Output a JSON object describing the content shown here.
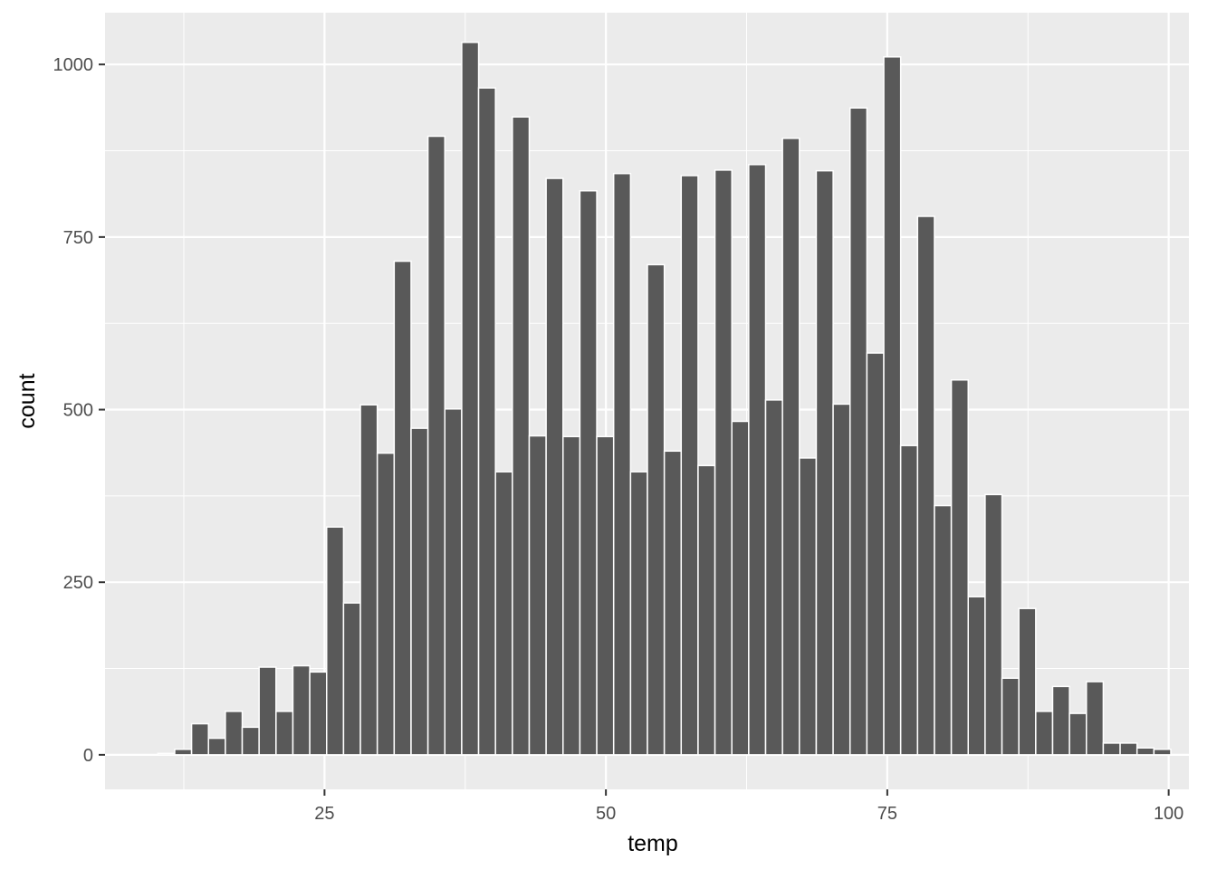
{
  "chart_data": {
    "type": "bar",
    "xlabel": "temp",
    "ylabel": "count",
    "xlim": [
      5.5,
      101.8
    ],
    "ylim": [
      -50,
      1075
    ],
    "x_ticks": [
      25,
      50,
      75,
      100
    ],
    "x_tick_labels": [
      "25",
      "50",
      "75",
      "100"
    ],
    "y_ticks": [
      0,
      250,
      500,
      750,
      1000
    ],
    "y_tick_labels": [
      "0",
      "250",
      "500",
      "750",
      "1000"
    ],
    "bin_width": 1.5,
    "bin_centers": [
      10.94,
      12.44,
      13.94,
      15.44,
      16.94,
      18.44,
      19.94,
      21.44,
      22.94,
      24.44,
      25.94,
      27.44,
      28.94,
      30.44,
      31.94,
      33.44,
      34.94,
      36.44,
      37.94,
      39.44,
      40.94,
      42.44,
      43.94,
      45.44,
      46.94,
      48.44,
      49.94,
      51.44,
      52.94,
      54.44,
      55.94,
      57.44,
      58.94,
      60.44,
      61.94,
      63.44,
      64.94,
      66.44,
      67.94,
      69.44,
      70.94,
      72.44,
      73.94,
      75.44,
      76.94,
      78.44,
      79.94,
      81.44,
      82.94,
      84.44,
      85.94,
      87.44,
      88.94,
      90.44,
      91.94,
      93.44,
      94.94,
      96.44,
      97.94,
      99.44
    ],
    "counts": [
      2,
      8,
      45,
      24,
      63,
      40,
      127,
      63,
      129,
      120,
      330,
      220,
      507,
      437,
      715,
      473,
      896,
      501,
      1032,
      966,
      410,
      924,
      462,
      835,
      461,
      817,
      461,
      842,
      410,
      710,
      440,
      839,
      419,
      847,
      483,
      855,
      514,
      893,
      430,
      846,
      508,
      937,
      582,
      1011,
      448,
      780,
      361,
      543,
      229,
      377,
      111,
      212,
      63,
      99,
      60,
      106,
      17,
      17,
      10,
      8
    ],
    "grid": true,
    "colors": {
      "panel_background": "#ebebeb",
      "grid_major": "#ffffff",
      "bar_fill": "#595959",
      "bar_outline": "#ffffff",
      "tick_label": "#4d4d4d",
      "axis_title": "#000000"
    }
  }
}
